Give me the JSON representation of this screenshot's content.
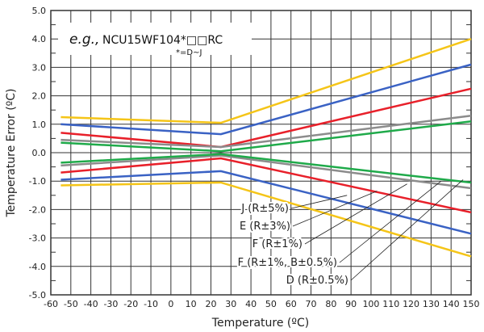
{
  "chart_data": {
    "type": "line",
    "title": "",
    "xlabel": "Temperature (ºC)",
    "ylabel": "Temperature Error (ºC)",
    "xlim": [
      -60,
      150
    ],
    "ylim": [
      -5.0,
      5.0
    ],
    "xticks": [
      -60,
      -50,
      -40,
      -30,
      -20,
      -10,
      0,
      10,
      20,
      30,
      40,
      50,
      60,
      70,
      80,
      90,
      100,
      110,
      120,
      130,
      140,
      150
    ],
    "yticks": [
      "5.0",
      "4.0",
      "3.0",
      "2.0",
      "1.0",
      "0.0",
      "-1.0",
      "-2.0",
      "-3.0",
      "-4.0",
      "-5.0"
    ],
    "grid": true,
    "annotation": {
      "prefix": "e.g.,",
      "part": "NCU15WF104*□□RC",
      "note": "*=D~J"
    },
    "series": [
      {
        "name": "J (R±5%)",
        "color": "#f5c518",
        "x": [
          -55,
          25,
          150
        ],
        "upper": [
          1.25,
          1.05,
          4.0
        ],
        "lower": [
          -1.15,
          -1.05,
          -3.65
        ]
      },
      {
        "name": "E (R±3%)",
        "color": "#3a62c4",
        "x": [
          -55,
          25,
          150
        ],
        "upper": [
          1.0,
          0.65,
          3.1
        ],
        "lower": [
          -0.95,
          -0.65,
          -2.85
        ]
      },
      {
        "name": "F (R±1%)",
        "color": "#e8202a",
        "x": [
          -55,
          25,
          150
        ],
        "upper": [
          0.7,
          0.2,
          2.25
        ],
        "lower": [
          -0.7,
          -0.2,
          -2.1
        ]
      },
      {
        "name": "F (R±1%, B±0.5%)",
        "color": "#8c8c8c",
        "x": [
          -55,
          25,
          150
        ],
        "upper": [
          0.45,
          0.2,
          1.3
        ],
        "lower": [
          -0.45,
          -0.1,
          -1.25
        ]
      },
      {
        "name": "D (R±0.5%)",
        "color": "#1faa4a",
        "x": [
          -55,
          25,
          150
        ],
        "upper": [
          0.35,
          0.05,
          1.1
        ],
        "lower": [
          -0.35,
          -0.05,
          -1.05
        ]
      }
    ]
  }
}
